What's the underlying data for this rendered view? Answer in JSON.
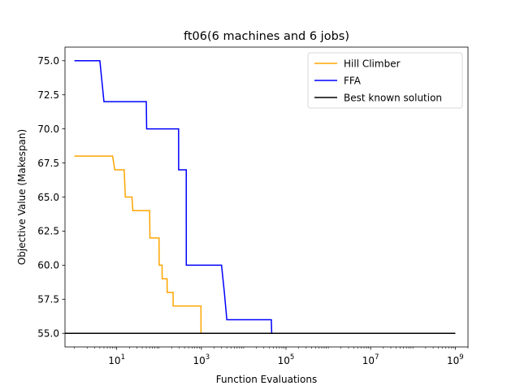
{
  "chart_data": {
    "type": "line",
    "title": "ft06(6 machines and 6 jobs)",
    "xlabel": "Function Evaluations",
    "ylabel": "Objective Value (Makespan)",
    "xscale": "log",
    "xlim": [
      0.6,
      2000000000
    ],
    "ylim": [
      54.0,
      76.0
    ],
    "xticks": [
      {
        "value": 10,
        "base": "10",
        "exp": "1"
      },
      {
        "value": 1000,
        "base": "10",
        "exp": "3"
      },
      {
        "value": 100000,
        "base": "10",
        "exp": "5"
      },
      {
        "value": 10000000,
        "base": "10",
        "exp": "7"
      },
      {
        "value": 1000000000,
        "base": "10",
        "exp": "9"
      }
    ],
    "yticks": [
      "55.0",
      "57.5",
      "60.0",
      "62.5",
      "65.0",
      "67.5",
      "70.0",
      "72.5",
      "75.0"
    ],
    "grid": false,
    "legend_position": "top-right",
    "series": [
      {
        "name": "Hill Climber",
        "color": "#ffa500",
        "x": [
          1,
          8,
          9,
          15,
          16,
          23,
          24,
          35,
          36,
          60,
          61,
          85,
          86,
          100,
          101,
          118,
          119,
          155,
          156,
          215,
          216,
          500,
          501,
          980,
          981,
          1000000000
        ],
        "y": [
          68,
          68,
          67,
          67,
          65,
          65,
          64,
          64,
          64,
          64,
          62,
          62,
          62,
          62,
          60,
          60,
          59,
          59,
          58,
          58,
          57,
          57,
          57,
          57,
          55,
          55
        ]
      },
      {
        "name": "FFA",
        "color": "#0000ff",
        "x": [
          1,
          4,
          5,
          50,
          51,
          290,
          291,
          440,
          441,
          3000,
          3500,
          4000,
          45000,
          46000,
          1000000000
        ],
        "y": [
          75,
          75,
          72,
          72,
          70,
          70,
          67,
          67,
          60,
          60,
          58,
          56,
          56,
          55,
          55
        ]
      },
      {
        "name": "Best known solution",
        "color": "#000000",
        "x": [
          0.6,
          1000000000
        ],
        "y": [
          55,
          55
        ]
      }
    ]
  }
}
